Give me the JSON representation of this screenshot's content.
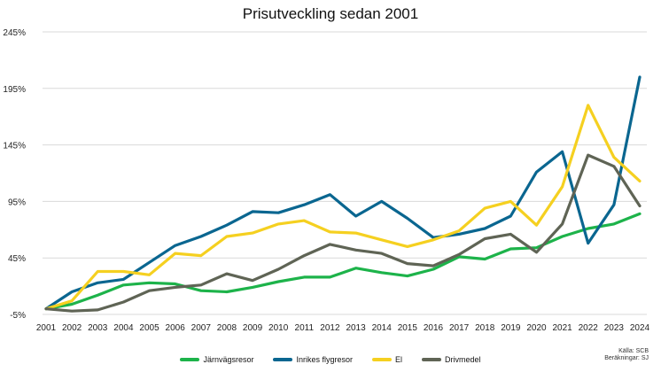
{
  "chart_data": {
    "type": "line",
    "title": "Prisutveckling sedan 2001",
    "xlabel": "",
    "ylabel": "",
    "ylim": [
      -5,
      245
    ],
    "y_ticks": [
      "-5%",
      "45%",
      "95%",
      "145%",
      "195%",
      "245%"
    ],
    "y_tick_values": [
      -5,
      45,
      95,
      145,
      195,
      245
    ],
    "grid": true,
    "legend_position": "bottom",
    "x": [
      "2001",
      "2002",
      "2003",
      "2004",
      "2005",
      "2006",
      "2007",
      "2008",
      "2009",
      "2010",
      "2011",
      "2012",
      "2013",
      "2014",
      "2015",
      "2016",
      "2017",
      "2018",
      "2019",
      "2020",
      "2021",
      "2022",
      "2023",
      "2024"
    ],
    "series": [
      {
        "name": "Järnvägsresor",
        "color": "#1db34a",
        "values": [
          0,
          4,
          12,
          21,
          23,
          22,
          16,
          15,
          19,
          24,
          28,
          28,
          36,
          32,
          29,
          35,
          46,
          44,
          53,
          54,
          64,
          71,
          75,
          84
        ]
      },
      {
        "name": "Inrikes flygresor",
        "color": "#0a6690",
        "values": [
          0,
          15,
          23,
          26,
          41,
          56,
          64,
          74,
          86,
          85,
          92,
          101,
          82,
          95,
          80,
          63,
          66,
          71,
          82,
          121,
          139,
          58,
          92,
          205
        ]
      },
      {
        "name": "El",
        "color": "#f5d020",
        "values": [
          0,
          7,
          33,
          33,
          30,
          49,
          47,
          64,
          67,
          75,
          78,
          68,
          67,
          61,
          55,
          61,
          69,
          89,
          95,
          74,
          108,
          180,
          134,
          113
        ]
      },
      {
        "name": "Drivmedel",
        "color": "#5f6455",
        "values": [
          0,
          -2,
          -1,
          6,
          16,
          19,
          21,
          31,
          25,
          35,
          47,
          57,
          52,
          49,
          40,
          38,
          48,
          62,
          66,
          50,
          75,
          136,
          126,
          91
        ]
      }
    ]
  },
  "source": {
    "line1": "Källa: SCB",
    "line2": "Beräkningar: SJ"
  }
}
